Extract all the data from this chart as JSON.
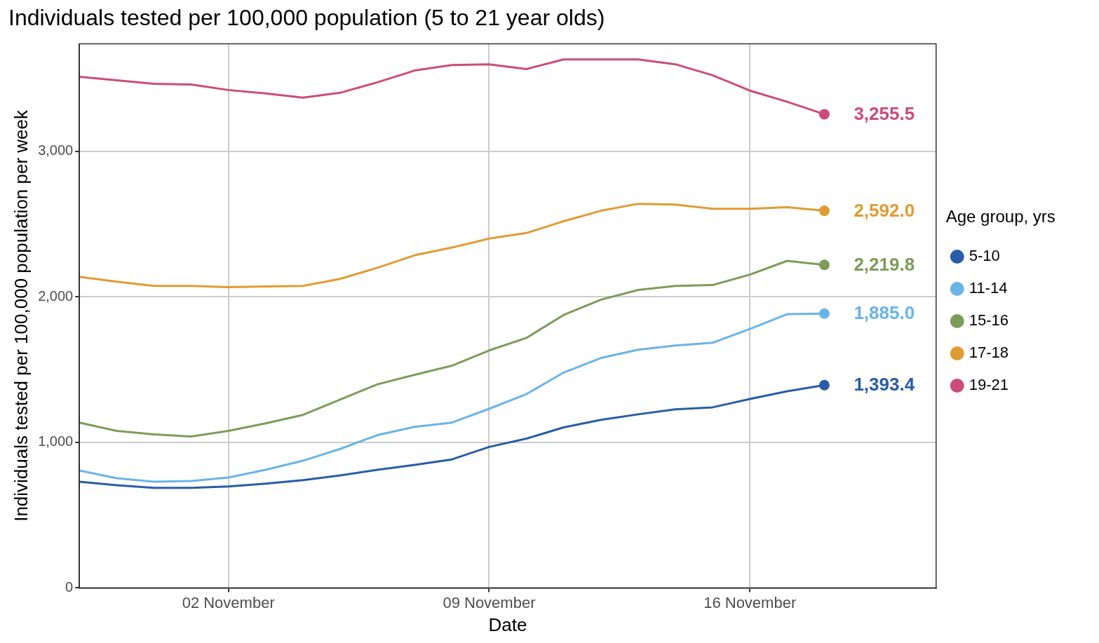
{
  "chart_data": {
    "type": "line",
    "title": "Individuals tested per 100,000 population (5 to 21 year olds)",
    "xlabel": "Date",
    "ylabel": "Individuals tested per 100,000 population per week",
    "legend_title": "Age group, yrs",
    "legend": "right",
    "grid": true,
    "x": [
      "--10-29",
      "--10-30",
      "--10-31",
      "--11-01",
      "--11-02",
      "--11-03",
      "--11-04",
      "--11-05",
      "--11-06",
      "--11-07",
      "--11-08",
      "--11-09",
      "--11-10",
      "--11-11",
      "--11-12",
      "--11-13",
      "--11-14",
      "--11-15",
      "--11-16",
      "--11-17",
      "--11-18"
    ],
    "xlim": [
      "--10-29",
      "--11-21"
    ],
    "xticks": [
      {
        "value": "--11-02",
        "label": "02 November"
      },
      {
        "value": "--11-09",
        "label": "09 November"
      },
      {
        "value": "--11-16",
        "label": "16 November"
      }
    ],
    "ylim": [
      0,
      3740
    ],
    "yticks": [
      {
        "value": 0,
        "label": "0"
      },
      {
        "value": 1000,
        "label": "1,000"
      },
      {
        "value": 2000,
        "label": "2,000"
      },
      {
        "value": 3000,
        "label": "3,000"
      }
    ],
    "series": [
      {
        "name": "5-10",
        "color": "#2a5ca8",
        "values": [
          730,
          706,
          687,
          687,
          697,
          716,
          740,
          773,
          812,
          845,
          883,
          969,
          1026,
          1103,
          1155,
          1193,
          1227,
          1241,
          1298,
          1351,
          1393.4
        ],
        "value_labels": [
          null,
          null,
          null,
          null,
          null,
          null,
          null,
          null,
          null,
          null,
          null,
          null,
          null,
          null,
          null,
          null,
          null,
          null,
          null,
          null,
          "1,393.4"
        ]
      },
      {
        "name": "11-14",
        "color": "#6ab4e6",
        "values": [
          807,
          754,
          730,
          735,
          759,
          812,
          874,
          955,
          1050,
          1107,
          1136,
          1231,
          1332,
          1480,
          1580,
          1637,
          1666,
          1685,
          1780,
          1881,
          1885.0
        ],
        "value_labels": [
          null,
          null,
          null,
          null,
          null,
          null,
          null,
          null,
          null,
          null,
          null,
          null,
          null,
          null,
          null,
          null,
          null,
          null,
          null,
          null,
          "1,885.0"
        ]
      },
      {
        "name": "15-16",
        "color": "#7d9c5a",
        "values": [
          1136,
          1079,
          1055,
          1041,
          1079,
          1131,
          1189,
          1294,
          1399,
          1465,
          1527,
          1632,
          1718,
          1876,
          1981,
          2048,
          2076,
          2081,
          2153,
          2248,
          2219.8
        ],
        "value_labels": [
          null,
          null,
          null,
          null,
          null,
          null,
          null,
          null,
          null,
          null,
          null,
          null,
          null,
          null,
          null,
          null,
          null,
          null,
          null,
          null,
          "2,219.8"
        ]
      },
      {
        "name": "17-18",
        "color": "#e09c32",
        "values": [
          2138,
          2105,
          2076,
          2076,
          2067,
          2072,
          2076,
          2124,
          2200,
          2286,
          2339,
          2401,
          2439,
          2520,
          2592,
          2640,
          2635,
          2606,
          2606,
          2616,
          2592.0
        ],
        "value_labels": [
          null,
          null,
          null,
          null,
          null,
          null,
          null,
          null,
          null,
          null,
          null,
          null,
          null,
          null,
          null,
          null,
          null,
          null,
          null,
          null,
          "2,592.0"
        ]
      },
      {
        "name": "19-21",
        "color": "#cc4c7c",
        "values": [
          3513,
          3489,
          3465,
          3460,
          3422,
          3399,
          3370,
          3403,
          3475,
          3556,
          3594,
          3599,
          3566,
          3632,
          3632,
          3632,
          3599,
          3523,
          3418,
          3341,
          3255.5
        ],
        "value_labels": [
          null,
          null,
          null,
          null,
          null,
          null,
          null,
          null,
          null,
          null,
          null,
          null,
          null,
          null,
          null,
          null,
          null,
          null,
          null,
          null,
          "3,255.5"
        ]
      }
    ]
  }
}
